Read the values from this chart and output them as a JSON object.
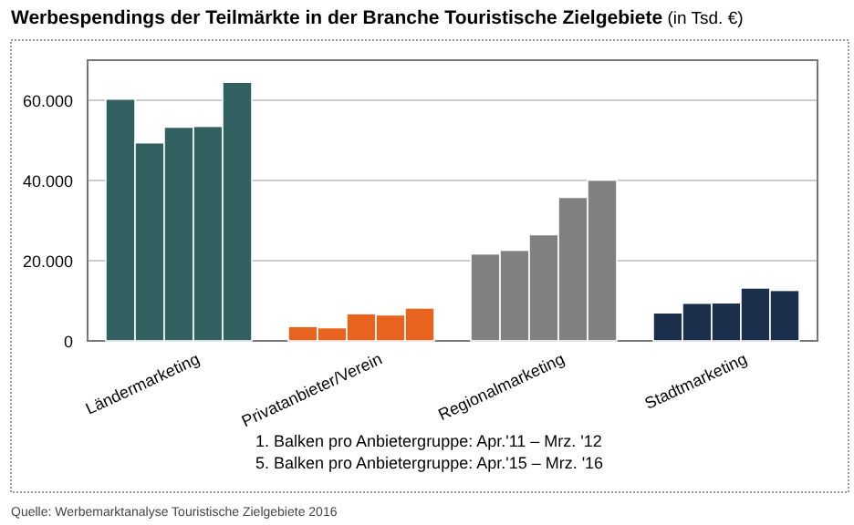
{
  "chart_data": {
    "type": "bar",
    "title": "Werbespendings der Teilmärkte in der Branche Touristische Zielgebiete",
    "subtitle": "(in Tsd. €)",
    "categories": [
      "Ländermarketing",
      "Privatanbieter/Verein",
      "Regionalmarketing",
      "Stadtmarketing"
    ],
    "series": [
      {
        "colors": [
          "#325f5f",
          "#e8641e",
          "#808080",
          "#1b2f4d"
        ],
        "values": [
          60300,
          3600,
          21700,
          7000
        ]
      },
      {
        "colors": [
          "#325f5f",
          "#e8641e",
          "#808080",
          "#1b2f4d"
        ],
        "values": [
          49400,
          3300,
          22600,
          9400
        ]
      },
      {
        "colors": [
          "#325f5f",
          "#e8641e",
          "#808080",
          "#1b2f4d"
        ],
        "values": [
          53300,
          6800,
          26500,
          9500
        ]
      },
      {
        "colors": [
          "#325f5f",
          "#e8641e",
          "#808080",
          "#1b2f4d"
        ],
        "values": [
          53500,
          6500,
          35800,
          13200
        ]
      },
      {
        "colors": [
          "#325f5f",
          "#e8641e",
          "#808080",
          "#1b2f4d"
        ],
        "values": [
          64500,
          8200,
          40100,
          12600
        ]
      }
    ],
    "ylim": [
      0,
      70000
    ],
    "yticks": [
      {
        "value": 0,
        "label": "0"
      },
      {
        "value": 20000,
        "label": "20.000"
      },
      {
        "value": 40000,
        "label": "40.000"
      },
      {
        "value": 60000,
        "label": "60.000"
      }
    ],
    "grid": "y",
    "annotations": [
      "1.  Balken pro Anbietergruppe: Apr.'11 – Mrz. '12",
      "5.  Balken pro Anbietergruppe: Apr.'15 – Mrz. '16",
      "Quelle: Werbemarktanalyse Touristische Zielgebiete 2016"
    ]
  }
}
